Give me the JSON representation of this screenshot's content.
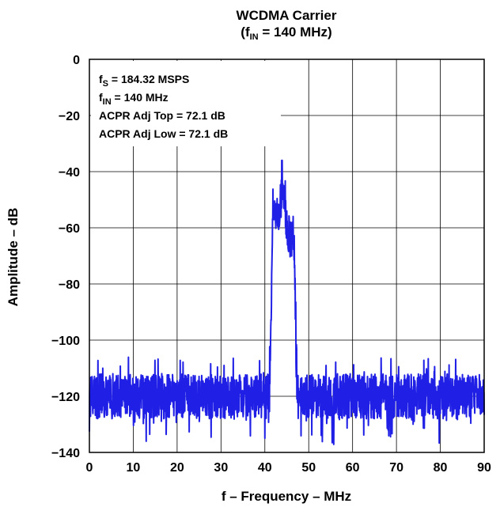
{
  "chart_data": {
    "type": "line",
    "title": "WCDMA Carrier",
    "subtitle": {
      "prefix": "(f",
      "sub": "IN",
      "suffix": " = 140 MHz)"
    },
    "xlabel": "f – Frequency – MHz",
    "ylabel": "Amplitude – dB",
    "xlim": [
      0,
      90
    ],
    "ylim": [
      -140,
      0
    ],
    "xticks": [
      0,
      10,
      20,
      30,
      40,
      50,
      60,
      70,
      80,
      90
    ],
    "yticks": [
      0,
      -20,
      -40,
      -60,
      -80,
      -100,
      -120,
      -140
    ],
    "xtick_labels": [
      "0",
      "10",
      "20",
      "30",
      "40",
      "50",
      "60",
      "70",
      "80",
      "90"
    ],
    "ytick_labels": [
      "0",
      "−20",
      "−40",
      "−60",
      "−80",
      "−100",
      "−120",
      "−140"
    ],
    "grid": true,
    "line_color": "#1f1fe6",
    "annotations": [
      {
        "main": "f",
        "sub": "S",
        "rest": " = 184.32 MSPS"
      },
      {
        "main": "f",
        "sub": "IN",
        "rest": " = 140 MHz"
      },
      {
        "main": "ACPR Adj Top = 72.1 dB",
        "sub": "",
        "rest": ""
      },
      {
        "main": "ACPR Adj Low = 72.1 dB",
        "sub": "",
        "rest": ""
      }
    ],
    "series": [
      {
        "noise_floor_db": -120,
        "noise_spread_db": 8,
        "carrier_band_mhz": [
          41.8,
          46.6
        ],
        "carrier_peak_db": -36,
        "carrier_level_db": -45,
        "points": [
          [
            0,
            -118
          ],
          [
            2,
            -124
          ],
          [
            4,
            -120
          ],
          [
            6,
            -133
          ],
          [
            8,
            -119
          ],
          [
            10,
            -122
          ],
          [
            12,
            -117
          ],
          [
            14,
            -128
          ],
          [
            16,
            -121
          ],
          [
            18,
            -119
          ],
          [
            20,
            -124
          ],
          [
            22,
            -118
          ],
          [
            24,
            -130
          ],
          [
            26,
            -120
          ],
          [
            28,
            -123
          ],
          [
            30,
            -117
          ],
          [
            32,
            -126
          ],
          [
            34,
            -119
          ],
          [
            36,
            -121
          ],
          [
            38,
            -127
          ],
          [
            40,
            -120
          ],
          [
            41,
            -112
          ],
          [
            41.8,
            -80
          ],
          [
            42.2,
            -45
          ],
          [
            42.8,
            -38
          ],
          [
            43.4,
            -48
          ],
          [
            43.9,
            -36
          ],
          [
            44.4,
            -55
          ],
          [
            44.9,
            -42
          ],
          [
            45.4,
            -63
          ],
          [
            45.9,
            -47
          ],
          [
            46.4,
            -62
          ],
          [
            46.8,
            -90
          ],
          [
            47.2,
            -110
          ],
          [
            48,
            -118
          ],
          [
            50,
            -124
          ],
          [
            52,
            -119
          ],
          [
            54,
            -131
          ],
          [
            56,
            -121
          ],
          [
            58,
            -118
          ],
          [
            60,
            -125
          ],
          [
            62,
            -120
          ],
          [
            64,
            -129
          ],
          [
            66,
            -117
          ],
          [
            68,
            -122
          ],
          [
            70,
            -120
          ],
          [
            72,
            -127
          ],
          [
            74,
            -119
          ],
          [
            76,
            -123
          ],
          [
            78,
            -118
          ],
          [
            80,
            -126
          ],
          [
            82,
            -120
          ],
          [
            84,
            -122
          ],
          [
            86,
            -117
          ],
          [
            88,
            -128
          ],
          [
            90,
            -121
          ]
        ]
      }
    ]
  }
}
